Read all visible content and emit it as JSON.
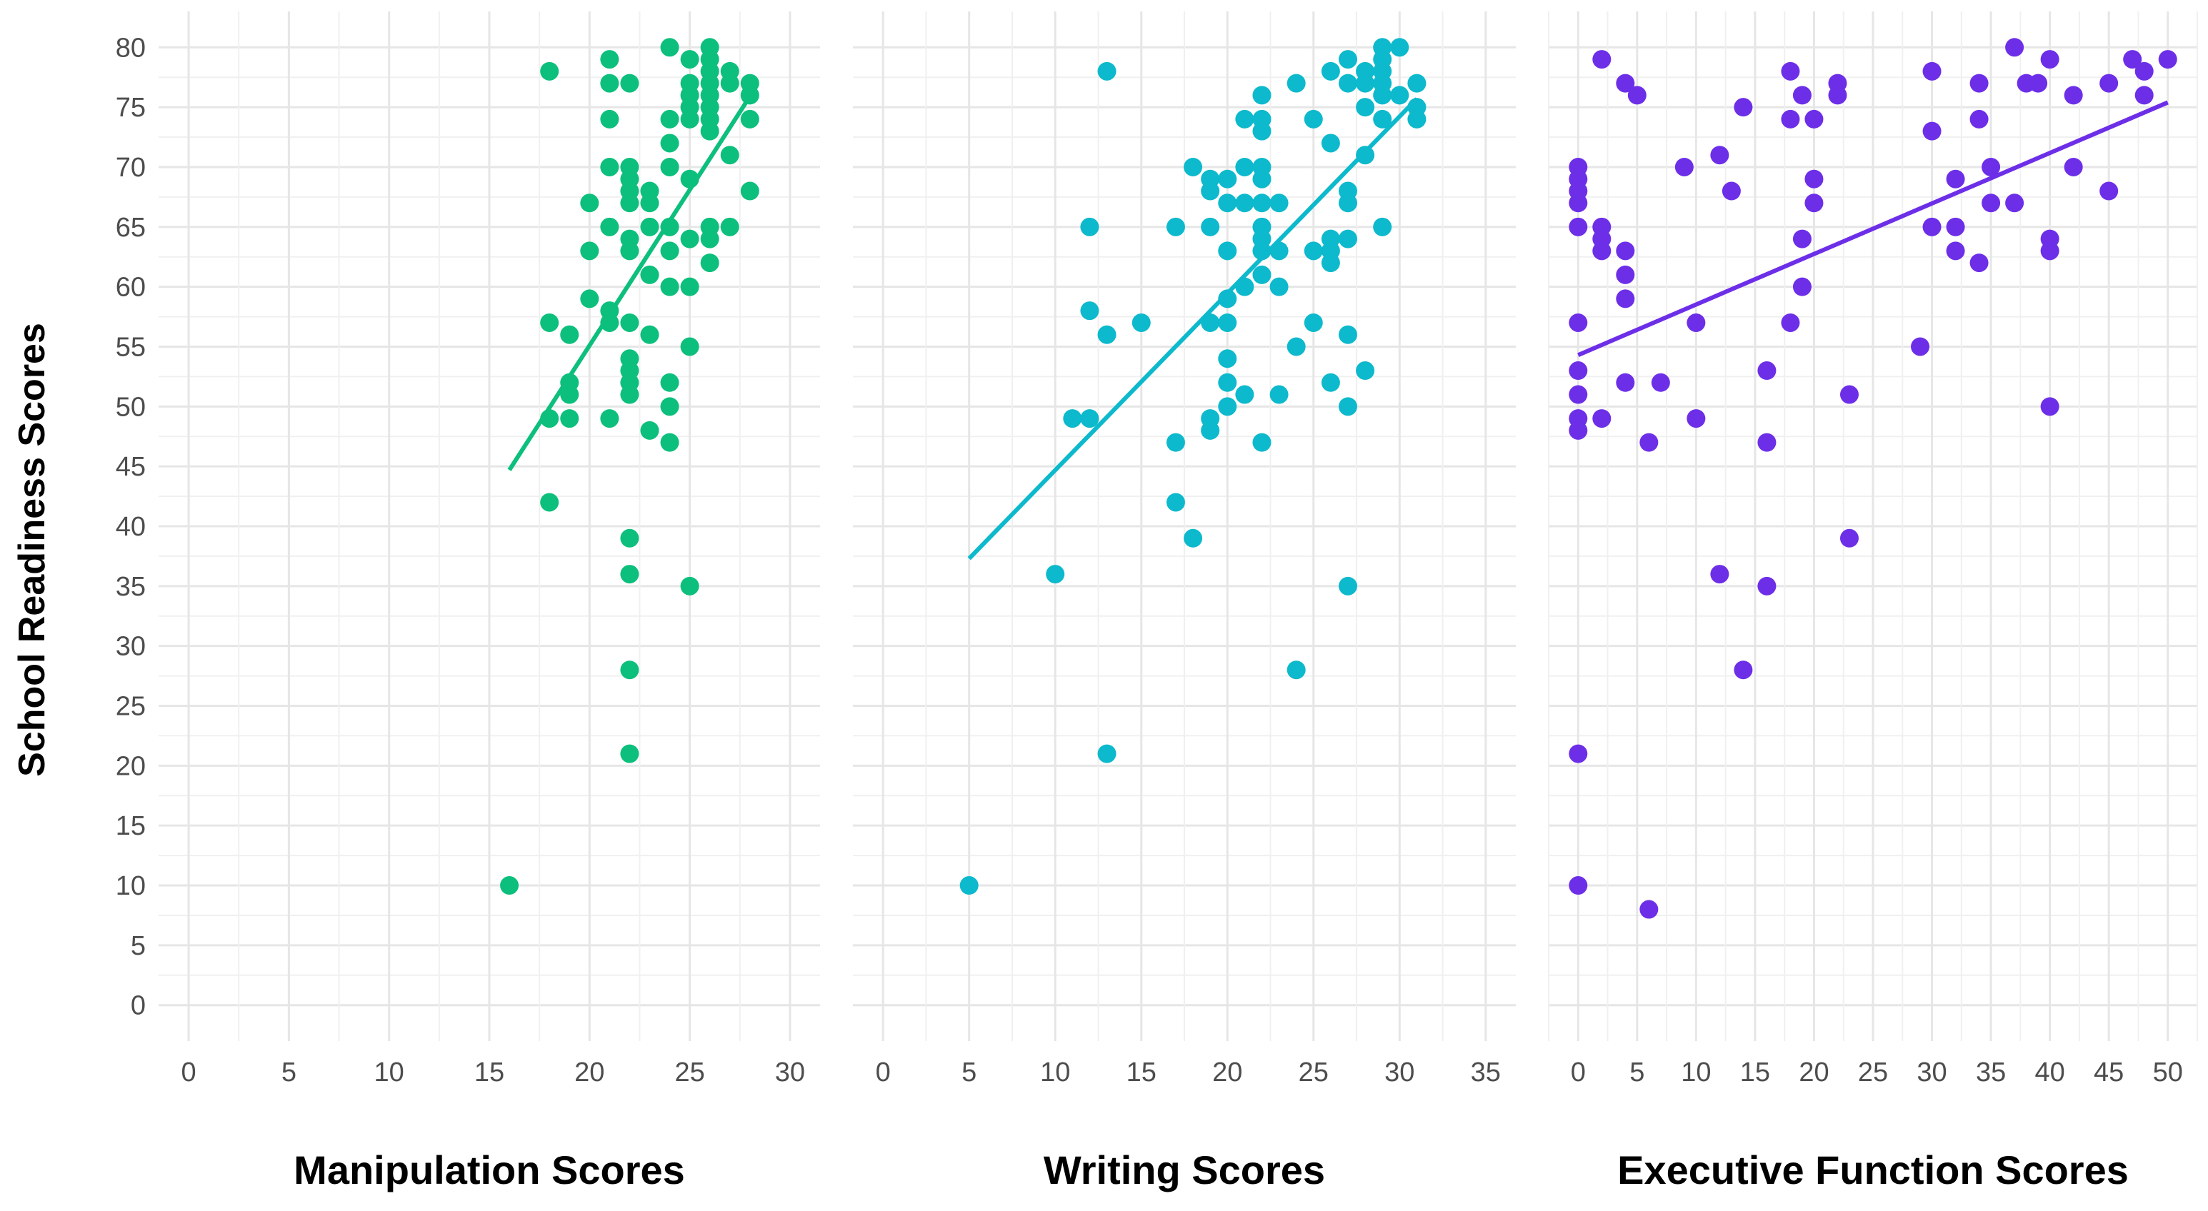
{
  "figure": {
    "ylabel": "School Readiness Scores",
    "yticks": [
      0,
      5,
      10,
      15,
      20,
      25,
      30,
      35,
      40,
      45,
      50,
      55,
      60,
      65,
      70,
      75,
      80
    ],
    "ylim": [
      -3,
      83
    ]
  },
  "chart_data": [
    {
      "type": "scatter",
      "title": "",
      "xlabel": "Manipulation Scores",
      "ylabel": "School Readiness Scores",
      "xlim": [
        -1.5,
        31.5
      ],
      "ylim": [
        -3,
        83
      ],
      "xticks": [
        0,
        5,
        10,
        15,
        20,
        25,
        30
      ],
      "color": "#0cbf7c",
      "grid": true,
      "legend": "none",
      "points": [
        [
          16,
          10
        ],
        [
          18,
          78
        ],
        [
          18,
          57
        ],
        [
          18,
          49
        ],
        [
          18,
          42
        ],
        [
          19,
          56
        ],
        [
          19,
          52
        ],
        [
          19,
          51
        ],
        [
          19,
          49
        ],
        [
          20,
          67
        ],
        [
          20,
          63
        ],
        [
          20,
          59
        ],
        [
          21,
          79
        ],
        [
          21,
          77
        ],
        [
          21,
          74
        ],
        [
          21,
          70
        ],
        [
          21,
          65
        ],
        [
          21,
          58
        ],
        [
          21,
          57
        ],
        [
          21,
          49
        ],
        [
          22,
          77
        ],
        [
          22,
          70
        ],
        [
          22,
          69
        ],
        [
          22,
          68
        ],
        [
          22,
          67
        ],
        [
          22,
          64
        ],
        [
          22,
          63
        ],
        [
          22,
          57
        ],
        [
          22,
          54
        ],
        [
          22,
          53
        ],
        [
          22,
          52
        ],
        [
          22,
          51
        ],
        [
          22,
          39
        ],
        [
          22,
          36
        ],
        [
          22,
          28
        ],
        [
          22,
          21
        ],
        [
          23,
          68
        ],
        [
          23,
          67
        ],
        [
          23,
          65
        ],
        [
          23,
          61
        ],
        [
          23,
          56
        ],
        [
          23,
          48
        ],
        [
          24,
          80
        ],
        [
          24,
          74
        ],
        [
          24,
          72
        ],
        [
          24,
          70
        ],
        [
          24,
          65
        ],
        [
          24,
          63
        ],
        [
          24,
          60
        ],
        [
          24,
          52
        ],
        [
          24,
          50
        ],
        [
          24,
          47
        ],
        [
          25,
          79
        ],
        [
          25,
          77
        ],
        [
          25,
          76
        ],
        [
          25,
          75
        ],
        [
          25,
          74
        ],
        [
          25,
          69
        ],
        [
          25,
          64
        ],
        [
          25,
          60
        ],
        [
          25,
          55
        ],
        [
          25,
          35
        ],
        [
          26,
          80
        ],
        [
          26,
          79
        ],
        [
          26,
          78
        ],
        [
          26,
          77
        ],
        [
          26,
          76
        ],
        [
          26,
          75
        ],
        [
          26,
          74
        ],
        [
          26,
          73
        ],
        [
          26,
          65
        ],
        [
          26,
          64
        ],
        [
          26,
          62
        ],
        [
          27,
          78
        ],
        [
          27,
          77
        ],
        [
          27,
          71
        ],
        [
          27,
          65
        ],
        [
          28,
          77
        ],
        [
          28,
          76
        ],
        [
          28,
          74
        ],
        [
          28,
          68
        ]
      ],
      "trendline": {
        "x": [
          16,
          28
        ],
        "y": [
          44.7,
          75.9
        ]
      }
    },
    {
      "type": "scatter",
      "title": "",
      "xlabel": "Writing Scores",
      "ylabel": "School Readiness Scores",
      "xlim": [
        -1.75,
        36.75
      ],
      "ylim": [
        -3,
        83
      ],
      "xticks": [
        0,
        5,
        10,
        15,
        20,
        25,
        30,
        35
      ],
      "color": "#0db9cc",
      "grid": true,
      "legend": "none",
      "points": [
        [
          5,
          10
        ],
        [
          10,
          36
        ],
        [
          11,
          49
        ],
        [
          12,
          65
        ],
        [
          12,
          58
        ],
        [
          12,
          49
        ],
        [
          13,
          78
        ],
        [
          13,
          56
        ],
        [
          13,
          21
        ],
        [
          15,
          57
        ],
        [
          17,
          65
        ],
        [
          17,
          47
        ],
        [
          17,
          42
        ],
        [
          18,
          70
        ],
        [
          18,
          39
        ],
        [
          19,
          69
        ],
        [
          19,
          68
        ],
        [
          19,
          65
        ],
        [
          19,
          57
        ],
        [
          19,
          49
        ],
        [
          19,
          48
        ],
        [
          20,
          69
        ],
        [
          20,
          67
        ],
        [
          20,
          63
        ],
        [
          20,
          59
        ],
        [
          20,
          57
        ],
        [
          20,
          54
        ],
        [
          20,
          52
        ],
        [
          20,
          50
        ],
        [
          21,
          74
        ],
        [
          21,
          70
        ],
        [
          21,
          67
        ],
        [
          21,
          60
        ],
        [
          21,
          51
        ],
        [
          22,
          76
        ],
        [
          22,
          74
        ],
        [
          22,
          73
        ],
        [
          22,
          70
        ],
        [
          22,
          69
        ],
        [
          22,
          67
        ],
        [
          22,
          65
        ],
        [
          22,
          64
        ],
        [
          22,
          63
        ],
        [
          22,
          61
        ],
        [
          22,
          47
        ],
        [
          23,
          67
        ],
        [
          23,
          63
        ],
        [
          23,
          60
        ],
        [
          23,
          51
        ],
        [
          24,
          77
        ],
        [
          24,
          55
        ],
        [
          24,
          28
        ],
        [
          25,
          74
        ],
        [
          25,
          63
        ],
        [
          25,
          57
        ],
        [
          26,
          78
        ],
        [
          26,
          72
        ],
        [
          26,
          64
        ],
        [
          26,
          63
        ],
        [
          26,
          62
        ],
        [
          26,
          52
        ],
        [
          27,
          79
        ],
        [
          27,
          77
        ],
        [
          27,
          68
        ],
        [
          27,
          67
        ],
        [
          27,
          64
        ],
        [
          27,
          56
        ],
        [
          27,
          50
        ],
        [
          27,
          35
        ],
        [
          28,
          78
        ],
        [
          28,
          77
        ],
        [
          28,
          75
        ],
        [
          28,
          71
        ],
        [
          28,
          53
        ],
        [
          29,
          80
        ],
        [
          29,
          79
        ],
        [
          29,
          78
        ],
        [
          29,
          77
        ],
        [
          29,
          76
        ],
        [
          29,
          74
        ],
        [
          29,
          65
        ],
        [
          30,
          80
        ],
        [
          30,
          76
        ],
        [
          31,
          77
        ],
        [
          31,
          75
        ],
        [
          31,
          74
        ]
      ],
      "trendline": {
        "x": [
          5,
          31
        ],
        "y": [
          37.3,
          75.7
        ]
      }
    },
    {
      "type": "scatter",
      "title": "",
      "xlabel": "Executive Function Scores",
      "ylabel": "School Readiness Scores",
      "xlim": [
        -2.5,
        52.5
      ],
      "ylim": [
        -3,
        83
      ],
      "xticks": [
        0,
        5,
        10,
        15,
        20,
        25,
        30,
        35,
        40,
        45,
        50
      ],
      "color": "#6d2ee8",
      "grid": true,
      "legend": "none",
      "points": [
        [
          0,
          70
        ],
        [
          0,
          69
        ],
        [
          0,
          68
        ],
        [
          0,
          67
        ],
        [
          0,
          65
        ],
        [
          0,
          57
        ],
        [
          0,
          53
        ],
        [
          0,
          51
        ],
        [
          0,
          49
        ],
        [
          0,
          48
        ],
        [
          0,
          21
        ],
        [
          0,
          10
        ],
        [
          2,
          79
        ],
        [
          2,
          65
        ],
        [
          2,
          64
        ],
        [
          2,
          63
        ],
        [
          2,
          49
        ],
        [
          4,
          77
        ],
        [
          4,
          63
        ],
        [
          4,
          61
        ],
        [
          4,
          59
        ],
        [
          4,
          52
        ],
        [
          5,
          76
        ],
        [
          6,
          47
        ],
        [
          6,
          8
        ],
        [
          7,
          52
        ],
        [
          9,
          70
        ],
        [
          10,
          57
        ],
        [
          10,
          49
        ],
        [
          12,
          71
        ],
        [
          12,
          36
        ],
        [
          13,
          68
        ],
        [
          14,
          75
        ],
        [
          14,
          28
        ],
        [
          16,
          53
        ],
        [
          16,
          47
        ],
        [
          16,
          35
        ],
        [
          18,
          78
        ],
        [
          18,
          74
        ],
        [
          18,
          57
        ],
        [
          19,
          76
        ],
        [
          19,
          64
        ],
        [
          19,
          60
        ],
        [
          20,
          74
        ],
        [
          20,
          69
        ],
        [
          20,
          67
        ],
        [
          22,
          77
        ],
        [
          22,
          76
        ],
        [
          23,
          51
        ],
        [
          23,
          39
        ],
        [
          29,
          55
        ],
        [
          30,
          78
        ],
        [
          30,
          73
        ],
        [
          30,
          65
        ],
        [
          32,
          69
        ],
        [
          32,
          65
        ],
        [
          32,
          63
        ],
        [
          34,
          77
        ],
        [
          34,
          74
        ],
        [
          34,
          62
        ],
        [
          35,
          70
        ],
        [
          35,
          67
        ],
        [
          37,
          80
        ],
        [
          37,
          67
        ],
        [
          38,
          77
        ],
        [
          39,
          77
        ],
        [
          40,
          79
        ],
        [
          40,
          64
        ],
        [
          40,
          63
        ],
        [
          40,
          50
        ],
        [
          42,
          76
        ],
        [
          42,
          70
        ],
        [
          45,
          77
        ],
        [
          45,
          68
        ],
        [
          47,
          79
        ],
        [
          48,
          78
        ],
        [
          48,
          76
        ],
        [
          50,
          79
        ]
      ],
      "trendline": {
        "x": [
          0,
          50
        ],
        "y": [
          54.3,
          75.4
        ]
      }
    }
  ]
}
